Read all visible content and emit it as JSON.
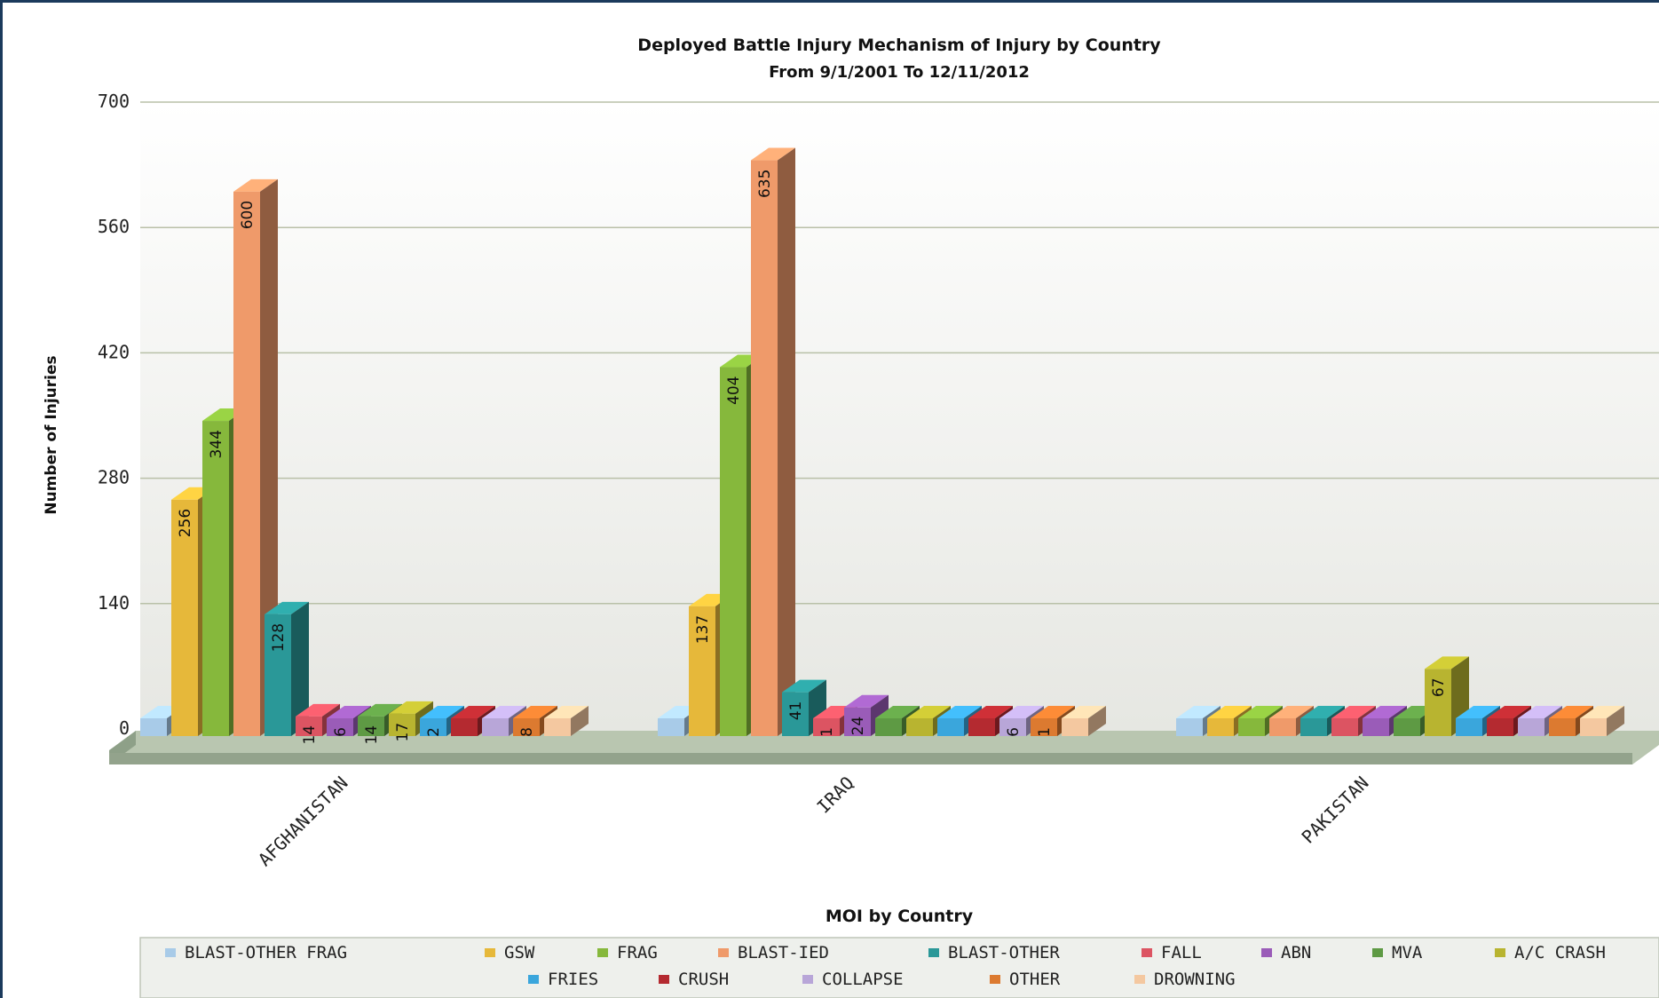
{
  "chart_data": {
    "type": "bar",
    "title": "Deployed Battle Injury Mechanism of Injury by Country",
    "subtitle": "From 9/1/2001 To 12/11/2012",
    "xlabel": "MOI by Country",
    "ylabel": "Number of Injuries",
    "ylim": [
      0,
      700
    ],
    "yticks": [
      0,
      140,
      280,
      420,
      560,
      700
    ],
    "grid": true,
    "three_d": true,
    "legend_position": "bottom",
    "categories": [
      "AFGHANISTAN",
      "IRAQ",
      "PAKISTAN"
    ],
    "series": [
      {
        "name": "BLAST-OTHER FRAG",
        "color": "#a8cbe8",
        "values": [
          0,
          0,
          0
        ],
        "labels": [
          "",
          "",
          ""
        ]
      },
      {
        "name": "GSW",
        "color": "#e6b83a",
        "values": [
          256,
          137,
          0
        ],
        "labels": [
          "256",
          "137",
          ""
        ]
      },
      {
        "name": "FRAG",
        "color": "#86b83c",
        "values": [
          344,
          404,
          0
        ],
        "labels": [
          "344",
          "404",
          ""
        ]
      },
      {
        "name": "BLAST-IED",
        "color": "#ef9a6a",
        "values": [
          600,
          635,
          0
        ],
        "labels": [
          "600",
          "635",
          ""
        ]
      },
      {
        "name": "BLAST-OTHER",
        "color": "#2a9898",
        "values": [
          128,
          41,
          0
        ],
        "labels": [
          "128",
          "41",
          ""
        ]
      },
      {
        "name": "FALL",
        "color": "#dc5462",
        "values": [
          14,
          1,
          0
        ],
        "labels": [
          "14",
          "1",
          ""
        ]
      },
      {
        "name": "ABN",
        "color": "#9a5cb8",
        "values": [
          6,
          24,
          0
        ],
        "labels": [
          "6",
          "24",
          ""
        ]
      },
      {
        "name": "MVA",
        "color": "#5e9a44",
        "values": [
          14,
          0,
          0
        ],
        "labels": [
          "14",
          "",
          ""
        ]
      },
      {
        "name": "A/C CRASH",
        "color": "#b8b430",
        "values": [
          17,
          0,
          67
        ],
        "labels": [
          "17",
          "",
          "67"
        ]
      },
      {
        "name": "FRIES",
        "color": "#3aa6dc",
        "values": [
          2,
          0,
          0
        ],
        "labels": [
          "2",
          "",
          ""
        ]
      },
      {
        "name": "CRUSH",
        "color": "#b42a30",
        "values": [
          0,
          0,
          0
        ],
        "labels": [
          "",
          "",
          ""
        ]
      },
      {
        "name": "COLLAPSE",
        "color": "#b8a6d8",
        "values": [
          0,
          6,
          0
        ],
        "labels": [
          "",
          "6",
          ""
        ]
      },
      {
        "name": "OTHER",
        "color": "#dc7a30",
        "values": [
          8,
          1,
          0
        ],
        "labels": [
          "8",
          "1",
          ""
        ]
      },
      {
        "name": "DROWNING",
        "color": "#f4c8a0",
        "values": [
          0,
          0,
          0
        ],
        "labels": [
          "",
          "",
          ""
        ]
      }
    ]
  },
  "colors": {
    "frame": "#1b3a5c",
    "plot_background": "#f1f2ee",
    "gridline": "#b9c0a8",
    "floor": "#a8b8a0"
  }
}
